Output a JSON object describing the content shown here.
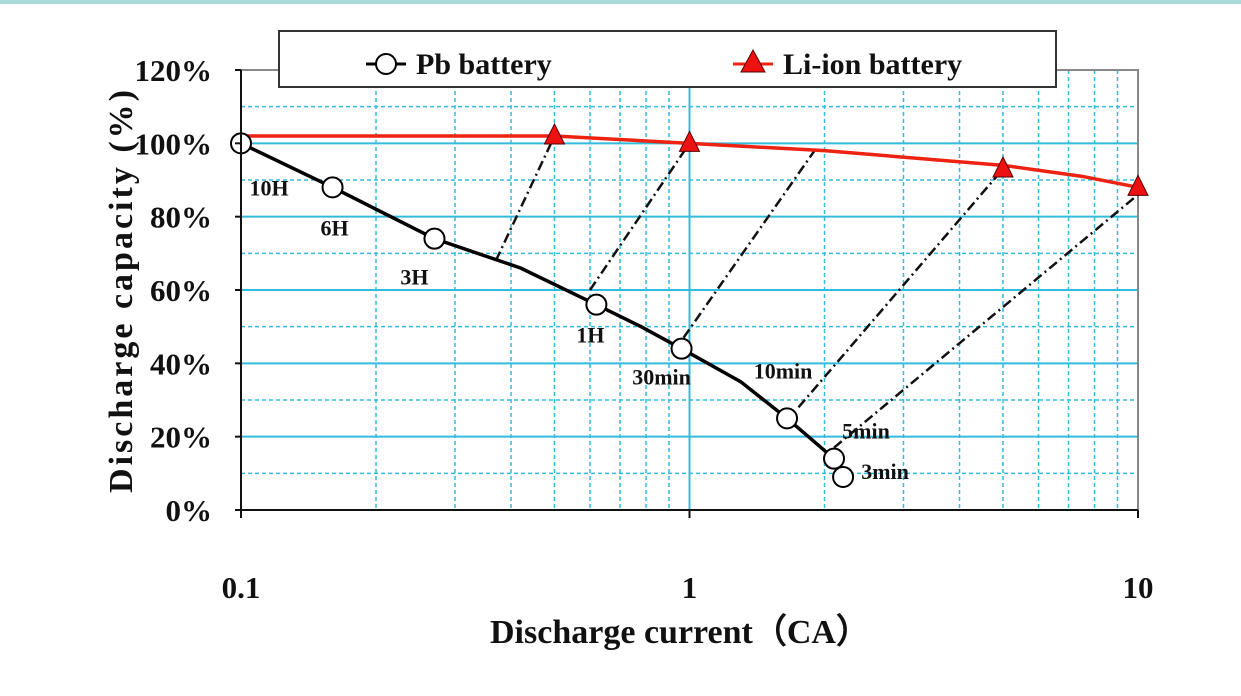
{
  "chart_data": {
    "type": "line",
    "title": "",
    "xlabel": "Discharge current（CA）",
    "ylabel": "Discharge capacity (%)",
    "xscale": "log",
    "xlim": [
      0.1,
      10
    ],
    "ylim": [
      0,
      120
    ],
    "x_ticks": [
      "0.1",
      "1",
      "10"
    ],
    "y_ticks": [
      "0%",
      "20%",
      "40%",
      "60%",
      "80%",
      "100%",
      "120%"
    ],
    "grid": true,
    "grid_color": "#33bbdd",
    "legend_position": "top",
    "series": [
      {
        "name": "Pb battery",
        "color": "#000000",
        "marker": "open-circle",
        "line_x": [
          0.1,
          0.16,
          0.27,
          0.42,
          0.62,
          0.78,
          0.96,
          1.3,
          1.65,
          2.1
        ],
        "line_y": [
          100,
          88,
          74,
          66,
          56,
          50,
          44,
          35,
          25,
          14
        ],
        "points": [
          {
            "x": 0.1,
            "y": 100,
            "label": "10H"
          },
          {
            "x": 0.16,
            "y": 88,
            "label": "6H"
          },
          {
            "x": 0.27,
            "y": 74,
            "label": "3H"
          },
          {
            "x": 0.62,
            "y": 56,
            "label": "1H"
          },
          {
            "x": 0.96,
            "y": 44,
            "label": "30min"
          },
          {
            "x": 1.65,
            "y": 25,
            "label": "10min"
          },
          {
            "x": 2.1,
            "y": 14,
            "label": "5min"
          },
          {
            "x": 2.2,
            "y": 9,
            "label": "3min"
          }
        ]
      },
      {
        "name": "Li-ion battery",
        "color": "#ee2211",
        "marker": "filled-triangle",
        "line_x": [
          0.1,
          0.5,
          1,
          2,
          5,
          7.5,
          10
        ],
        "line_y": [
          102,
          102,
          100,
          98,
          94,
          91,
          88
        ],
        "points": [
          {
            "x": 0.5,
            "y": 102
          },
          {
            "x": 1,
            "y": 100
          },
          {
            "x": 5,
            "y": 93
          },
          {
            "x": 10,
            "y": 88
          }
        ]
      }
    ],
    "connector_lines": [
      {
        "from": [
          0.37,
          68
        ],
        "to": [
          0.5,
          102
        ]
      },
      {
        "from": [
          0.6,
          60
        ],
        "to": [
          1,
          100
        ]
      },
      {
        "from": [
          0.97,
          47
        ],
        "to": [
          1.9,
          98
        ]
      },
      {
        "from": [
          1.75,
          28
        ],
        "to": [
          5,
          93
        ]
      },
      {
        "from": [
          2.1,
          17
        ],
        "to": [
          10,
          86
        ]
      }
    ]
  }
}
